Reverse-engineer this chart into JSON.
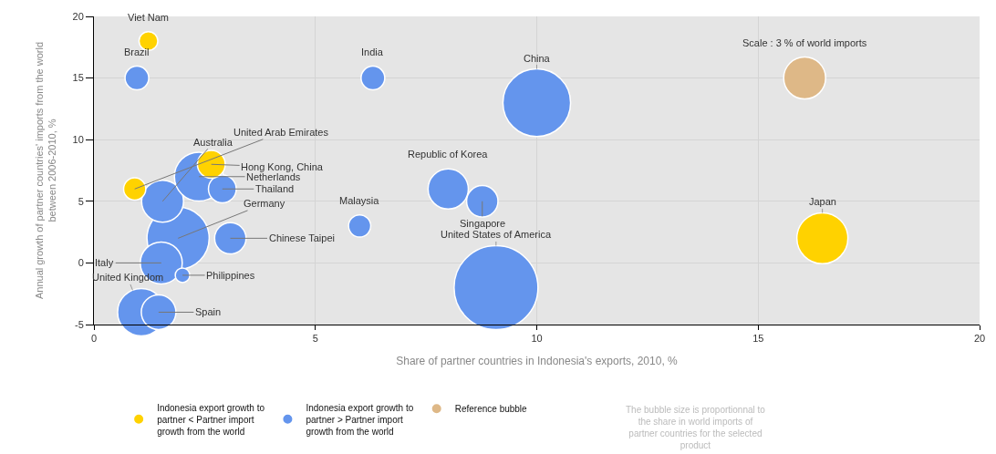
{
  "chart_data": {
    "type": "bubble",
    "xlabel": "Share of partner countries in Indonesia's exports, 2010, %",
    "ylabel": "Annual growth of partner countries' imports from the world between 2006-2010, %",
    "xlim": [
      0,
      20
    ],
    "xticks": [
      0,
      5,
      10,
      15,
      20
    ],
    "ylim": [
      -5,
      20
    ],
    "yticks": [
      -5,
      0,
      5,
      10,
      15,
      20
    ],
    "grid": true,
    "legend": "bottom",
    "series": [
      {
        "name": "Indonesia export growth to partner < Partner import growth from the world",
        "color": "#ffd200",
        "x": [
          1.23,
          0.92,
          2.65,
          16.45
        ],
        "values": [
          18,
          6,
          8,
          2
        ],
        "sizes": [
          0.05,
          0.07,
          0.11,
          0.37
        ]
      },
      {
        "name": "Indonesia export growth to partner > Partner import growth from the world",
        "color": "#6495ed",
        "x": [
          0.97,
          6.3,
          10.0,
          8.0,
          8.77,
          6.0,
          3.08,
          1.9,
          1.55,
          2.37,
          2.9,
          1.52,
          2.0,
          1.07,
          1.46,
          9.08
        ],
        "values": [
          15,
          15,
          13,
          6,
          5,
          3,
          2,
          2,
          5,
          7,
          6,
          0,
          -1,
          -4,
          -4,
          -2
        ],
        "sizes": [
          0.08,
          0.08,
          0.65,
          0.23,
          0.14,
          0.07,
          0.14,
          0.55,
          0.25,
          0.34,
          0.11,
          0.25,
          0.03,
          0.32,
          0.17,
          1
        ]
      },
      {
        "name": "Reference bubble",
        "color": "#deb887",
        "x": [
          16.05
        ],
        "values": [
          15
        ],
        "sizes": [
          0.25
        ]
      }
    ],
    "annotations": [
      {
        "text": "Viet Nam",
        "x": 1.23,
        "y": 18
      },
      {
        "text": "United Arab Emirates",
        "x": 0.92,
        "y": 6
      },
      {
        "text": "Hong Kong, China",
        "x": 2.65,
        "y": 8
      },
      {
        "text": "Japan",
        "x": 16.45,
        "y": 2
      },
      {
        "text": "Brazil",
        "x": 0.97,
        "y": 15
      },
      {
        "text": "India",
        "x": 6.3,
        "y": 15
      },
      {
        "text": "China",
        "x": 10.0,
        "y": 13
      },
      {
        "text": "Republic of Korea",
        "x": 8.0,
        "y": 6
      },
      {
        "text": "Singapore",
        "x": 8.77,
        "y": 5
      },
      {
        "text": "Malaysia",
        "x": 6.0,
        "y": 3
      },
      {
        "text": "Chinese Taipei",
        "x": 3.08,
        "y": 2
      },
      {
        "text": "Germany",
        "x": 1.9,
        "y": 2
      },
      {
        "text": "Australia",
        "x": 1.55,
        "y": 5
      },
      {
        "text": "Netherlands",
        "x": 2.37,
        "y": 7
      },
      {
        "text": "Thailand",
        "x": 2.9,
        "y": 6
      },
      {
        "text": "Italy",
        "x": 1.52,
        "y": 0
      },
      {
        "text": "Philippines",
        "x": 2.0,
        "y": -1
      },
      {
        "text": "United Kingdom",
        "x": 1.07,
        "y": -4
      },
      {
        "text": "Spain",
        "x": 1.46,
        "y": -4
      },
      {
        "text": "United States of America",
        "x": 9.08,
        "y": -2
      },
      {
        "text": "Scale : 3 % of world imports",
        "x": 16.05,
        "y": 15
      },
      "The bubble size is proportionnal to the share in world imports of partner countries for the selected product"
    ]
  }
}
